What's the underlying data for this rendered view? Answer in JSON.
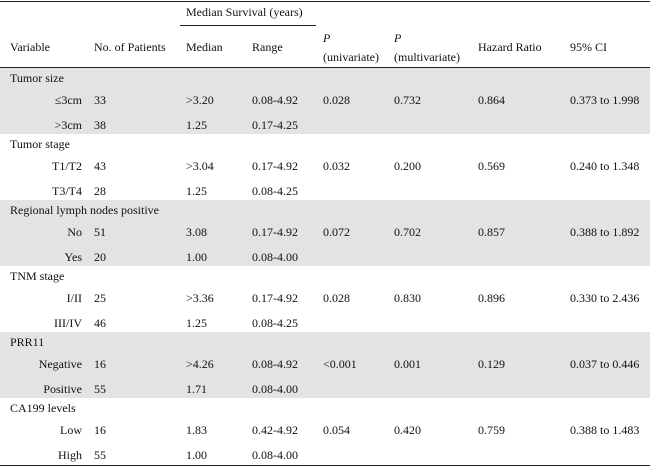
{
  "header": {
    "median_survival": "Median Survival (years)",
    "variable": "Variable",
    "num_patients": "No. of Patients",
    "median": "Median",
    "range": "Range",
    "p_univariate_symbol": "P",
    "p_univariate_label": "(univariate)",
    "p_multivariate_symbol": "P",
    "p_multivariate_label": "(multivariate)",
    "hazard_ratio": "Hazard Ratio",
    "ci": "95% CI"
  },
  "groups": [
    {
      "title": "Tumor size",
      "p_uni": "0.028",
      "p_multi": "0.732",
      "hr": "0.864",
      "ci": "0.373 to 1.998",
      "rows": [
        {
          "label": "≤3cm",
          "n": "33",
          "median": ">3.20",
          "range": "0.08-4.92"
        },
        {
          "label": ">3cm",
          "n": "38",
          "median": "1.25",
          "range": "0.17-4.25"
        }
      ]
    },
    {
      "title": "Tumor stage",
      "p_uni": "0.032",
      "p_multi": "0.200",
      "hr": "0.569",
      "ci": "0.240 to 1.348",
      "rows": [
        {
          "label": "T1/T2",
          "n": "43",
          "median": ">3.04",
          "range": "0.17-4.92"
        },
        {
          "label": "T3/T4",
          "n": "28",
          "median": "1.25",
          "range": "0.08-4.25"
        }
      ]
    },
    {
      "title": "Regional lymph nodes positive",
      "p_uni": "0.072",
      "p_multi": "0.702",
      "hr": "0.857",
      "ci": "0.388 to 1.892",
      "rows": [
        {
          "label": "No",
          "n": "51",
          "median": "3.08",
          "range": "0.17-4.92"
        },
        {
          "label": "Yes",
          "n": "20",
          "median": "1.00",
          "range": "0.08-4.00"
        }
      ]
    },
    {
      "title": "TNM stage",
      "p_uni": "0.028",
      "p_multi": "0.830",
      "hr": "0.896",
      "ci": "0.330 to 2.436",
      "rows": [
        {
          "label": "I/II",
          "n": "25",
          "median": ">3.36",
          "range": "0.17-4.92"
        },
        {
          "label": "III/IV",
          "n": "46",
          "median": "1.25",
          "range": "0.08-4.25"
        }
      ]
    },
    {
      "title": "PRR11",
      "p_uni": "<0.001",
      "p_multi": "0.001",
      "hr": "0.129",
      "ci": "0.037 to 0.446",
      "rows": [
        {
          "label": "Negative",
          "n": "16",
          "median": ">4.26",
          "range": "0.08-4.92"
        },
        {
          "label": "Positive",
          "n": "55",
          "median": "1.71",
          "range": "0.08-4.00"
        }
      ]
    },
    {
      "title": "CA199 levels",
      "p_uni": "0.054",
      "p_multi": "0.420",
      "hr": "0.759",
      "ci": "0.388 to 1.483",
      "rows": [
        {
          "label": "Low",
          "n": "16",
          "median": "1.83",
          "range": "0.42-4.92"
        },
        {
          "label": "High",
          "n": "55",
          "median": "1.00",
          "range": "0.08-4.00"
        }
      ]
    }
  ]
}
